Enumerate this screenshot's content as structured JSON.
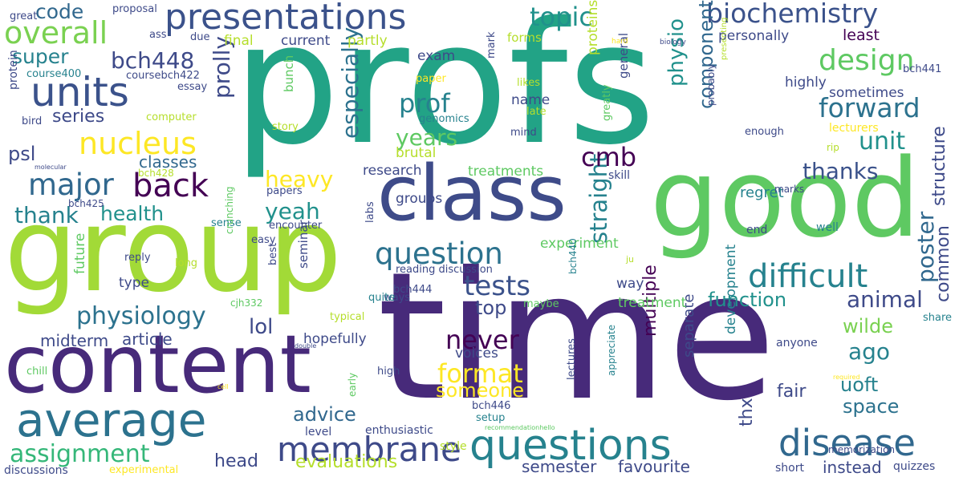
{
  "cloud": {
    "words": [
      {
        "text": "profs",
        "color": "#22a386"
      },
      {
        "text": "time",
        "color": "#472a7a"
      },
      {
        "text": "group",
        "color": "#a2da37"
      },
      {
        "text": "class",
        "color": "#3e4b89"
      },
      {
        "text": "good",
        "color": "#5ec962"
      },
      {
        "text": "content",
        "color": "#472a7a"
      },
      {
        "text": "average",
        "color": "#2c728e"
      },
      {
        "text": "questions",
        "color": "#26828e"
      },
      {
        "text": "presentations",
        "color": "#3b528b"
      },
      {
        "text": "units",
        "color": "#3b528b"
      },
      {
        "text": "biochemistry",
        "color": "#3b528b"
      },
      {
        "text": "overall",
        "color": "#7ad151"
      },
      {
        "text": "disease",
        "color": "#31688e"
      },
      {
        "text": "membrane",
        "color": "#3e4a89"
      },
      {
        "text": "nucleus",
        "color": "#fde725"
      },
      {
        "text": "major",
        "color": "#31688e"
      },
      {
        "text": "back",
        "color": "#440154"
      },
      {
        "text": "difficult",
        "color": "#26828e"
      },
      {
        "text": "design",
        "color": "#5ec962"
      },
      {
        "text": "forward",
        "color": "#2c728e"
      },
      {
        "text": "question",
        "color": "#2c728e"
      },
      {
        "text": "physiology",
        "color": "#2c728e"
      },
      {
        "text": "assignment",
        "color": "#35b779"
      },
      {
        "text": "tests",
        "color": "#3b528b"
      },
      {
        "text": "format",
        "color": "#fde725"
      },
      {
        "text": "never",
        "color": "#440154"
      },
      {
        "text": "straight",
        "color": "#26828e"
      },
      {
        "text": "especially",
        "color": "#2c728e"
      },
      {
        "text": "topic",
        "color": "#21918c"
      },
      {
        "text": "code",
        "color": "#31688e"
      },
      {
        "text": "super",
        "color": "#26828e"
      },
      {
        "text": "bch448",
        "color": "#3e4a89"
      },
      {
        "text": "prof",
        "color": "#26828e"
      },
      {
        "text": "years",
        "color": "#5ec962"
      },
      {
        "text": "unit",
        "color": "#21918c"
      },
      {
        "text": "cmb",
        "color": "#440154"
      },
      {
        "text": "prolly",
        "color": "#3e4a89"
      },
      {
        "text": "heavy",
        "color": "#fde725"
      },
      {
        "text": "health",
        "color": "#21918c"
      },
      {
        "text": "thank",
        "color": "#26828e"
      },
      {
        "text": "yeah",
        "color": "#21918c"
      },
      {
        "text": "physio",
        "color": "#21918c"
      },
      {
        "text": "component",
        "color": "#31688e"
      },
      {
        "text": "thanks",
        "color": "#3b528b"
      },
      {
        "text": "structure",
        "color": "#3e4a89"
      },
      {
        "text": "poster",
        "color": "#31688e"
      },
      {
        "text": "common",
        "color": "#3e4a89"
      },
      {
        "text": "animal",
        "color": "#3e4a89"
      },
      {
        "text": "function",
        "color": "#21918c"
      },
      {
        "text": "ago",
        "color": "#26828e"
      },
      {
        "text": "wilde",
        "color": "#7ad151"
      },
      {
        "text": "uoft",
        "color": "#26828e"
      },
      {
        "text": "space",
        "color": "#2c728e"
      },
      {
        "text": "lol",
        "color": "#3e4a89"
      },
      {
        "text": "psl",
        "color": "#3e4a89"
      },
      {
        "text": "series",
        "color": "#3e4a89"
      },
      {
        "text": "classes",
        "color": "#31688e"
      },
      {
        "text": "top",
        "color": "#3e4a89"
      },
      {
        "text": "advice",
        "color": "#31688e"
      },
      {
        "text": "someone",
        "color": "#fde725"
      },
      {
        "text": "head",
        "color": "#3e4a89"
      },
      {
        "text": "evaluations",
        "color": "#b5de2b"
      },
      {
        "text": "semester",
        "color": "#3e4a89"
      },
      {
        "text": "favourite",
        "color": "#3e4a89"
      },
      {
        "text": "instead",
        "color": "#3e4a89"
      },
      {
        "text": "thx",
        "color": "#3e4a89"
      },
      {
        "text": "fair",
        "color": "#3e4a89"
      },
      {
        "text": "separate",
        "color": "#3e4a89"
      },
      {
        "text": "multiple",
        "color": "#440154"
      },
      {
        "text": "midterm",
        "color": "#3e4a89"
      },
      {
        "text": "article",
        "color": "#3e4a89"
      },
      {
        "text": "research",
        "color": "#3e4a89"
      },
      {
        "text": "groups",
        "color": "#3e4a89"
      },
      {
        "text": "treatments",
        "color": "#5ec962"
      },
      {
        "text": "regret",
        "color": "#26828e"
      },
      {
        "text": "name",
        "color": "#3e4a89"
      },
      {
        "text": "brutal",
        "color": "#b5de2b"
      },
      {
        "text": "exam",
        "color": "#3e4a89"
      },
      {
        "text": "current",
        "color": "#3e4a89"
      },
      {
        "text": "final",
        "color": "#b5de2b"
      },
      {
        "text": "partly",
        "color": "#b5de2b"
      },
      {
        "text": "forms",
        "color": "#b5de2b"
      },
      {
        "text": "personally",
        "color": "#3e4a89"
      },
      {
        "text": "least",
        "color": "#440154"
      },
      {
        "text": "highly",
        "color": "#3e4a89"
      },
      {
        "text": "sometimes",
        "color": "#3e4a89"
      },
      {
        "text": "proteins",
        "color": "#b5de2b"
      },
      {
        "text": "general",
        "color": "#3e4a89"
      },
      {
        "text": "type",
        "color": "#3e4a89"
      },
      {
        "text": "voices",
        "color": "#3e4a89"
      },
      {
        "text": "hopefully",
        "color": "#3e4a89"
      },
      {
        "text": "experiment",
        "color": "#5ec962"
      },
      {
        "text": "treatment",
        "color": "#5ec962"
      },
      {
        "text": "way",
        "color": "#3e4a89"
      },
      {
        "text": "development",
        "color": "#26828e"
      },
      {
        "text": "enthusiastic",
        "color": "#3e4a89"
      },
      {
        "text": "level",
        "color": "#3e4a89"
      },
      {
        "text": "style",
        "color": "#b5de2b"
      },
      {
        "text": "setup",
        "color": "#26828e"
      },
      {
        "text": "future",
        "color": "#5ec962"
      },
      {
        "text": "seminar",
        "color": "#3e4a89"
      },
      {
        "text": "reading discussion",
        "color": "#3e4a89"
      },
      {
        "text": "bch444",
        "color": "#3e4a89"
      },
      {
        "text": "bch446",
        "color": "#3e4a89"
      },
      {
        "text": "bch440",
        "color": "#26828e"
      },
      {
        "text": "memorization",
        "color": "#3e4a89"
      },
      {
        "text": "quizzes",
        "color": "#3e4a89"
      },
      {
        "text": "short",
        "color": "#3e4a89"
      },
      {
        "text": "anyone",
        "color": "#3e4a89"
      },
      {
        "text": "share",
        "color": "#26828e"
      },
      {
        "text": "end",
        "color": "#3e4a89"
      },
      {
        "text": "well",
        "color": "#26828e"
      },
      {
        "text": "enough",
        "color": "#3e4a89"
      },
      {
        "text": "rip",
        "color": "#b5de2b"
      },
      {
        "text": "lecturers",
        "color": "#fde725"
      },
      {
        "text": "marks",
        "color": "#3e4a89"
      },
      {
        "text": "skill",
        "color": "#3e4a89"
      },
      {
        "text": "bch441",
        "color": "#3e4a89"
      },
      {
        "text": "biology",
        "color": "#3e4a89"
      },
      {
        "text": "hard",
        "color": "#fde725"
      },
      {
        "text": "probably",
        "color": "#3e4a89"
      },
      {
        "text": "presenting",
        "color": "#b5de2b"
      },
      {
        "text": "greatly",
        "color": "#5ec962"
      },
      {
        "text": "mind",
        "color": "#3e4a89"
      },
      {
        "text": "late",
        "color": "#b5de2b"
      },
      {
        "text": "likes",
        "color": "#b5de2b"
      },
      {
        "text": "genomics",
        "color": "#26828e"
      },
      {
        "text": "paper",
        "color": "#fde725"
      },
      {
        "text": "story",
        "color": "#b5de2b"
      },
      {
        "text": "mark",
        "color": "#3e4a89"
      },
      {
        "text": "bunch",
        "color": "#5ec962"
      },
      {
        "text": "papers",
        "color": "#3e4a89"
      },
      {
        "text": "bch428",
        "color": "#b5de2b"
      },
      {
        "text": "bch425",
        "color": "#3e4a89"
      },
      {
        "text": "molecular",
        "color": "#3e4a89"
      },
      {
        "text": "bird",
        "color": "#3e4a89"
      },
      {
        "text": "computer",
        "color": "#b5de2b"
      },
      {
        "text": "essay",
        "color": "#3e4a89"
      },
      {
        "text": "course400",
        "color": "#26828e"
      },
      {
        "text": "coursebch422",
        "color": "#3e4a89"
      },
      {
        "text": "protein",
        "color": "#3e4a89"
      },
      {
        "text": "great",
        "color": "#3e4a89"
      },
      {
        "text": "proposal",
        "color": "#3e4a89"
      },
      {
        "text": "ass",
        "color": "#3e4a89"
      },
      {
        "text": "due",
        "color": "#3e4a89"
      },
      {
        "text": "sense",
        "color": "#26828e"
      },
      {
        "text": "crunching",
        "color": "#5ec962"
      },
      {
        "text": "encounter",
        "color": "#3e4a89"
      },
      {
        "text": "easy",
        "color": "#3e4a89"
      },
      {
        "text": "best",
        "color": "#3e4a89"
      },
      {
        "text": "labs",
        "color": "#3e4a89"
      },
      {
        "text": "reply",
        "color": "#3e4a89"
      },
      {
        "text": "long",
        "color": "#b5de2b"
      },
      {
        "text": "ju",
        "color": "#b5de2b"
      },
      {
        "text": "ways",
        "color": "#3e4a89"
      },
      {
        "text": "quite",
        "color": "#26828e"
      },
      {
        "text": "maybe",
        "color": "#5ec962"
      },
      {
        "text": "cjh332",
        "color": "#5ec962"
      },
      {
        "text": "typical",
        "color": "#b5de2b"
      },
      {
        "text": "double",
        "color": "#3e4a89"
      },
      {
        "text": "chill",
        "color": "#5ec962"
      },
      {
        "text": "cell",
        "color": "#fde725"
      },
      {
        "text": "early",
        "color": "#5ec962"
      },
      {
        "text": "high",
        "color": "#3e4a89"
      },
      {
        "text": "lectures",
        "color": "#3e4a89"
      },
      {
        "text": "appreciate",
        "color": "#26828e"
      },
      {
        "text": "recommendationhello",
        "color": "#5ec962"
      },
      {
        "text": "required",
        "color": "#fde725"
      },
      {
        "text": "discussions",
        "color": "#3e4a89"
      },
      {
        "text": "experimental",
        "color": "#fde725"
      }
    ]
  }
}
